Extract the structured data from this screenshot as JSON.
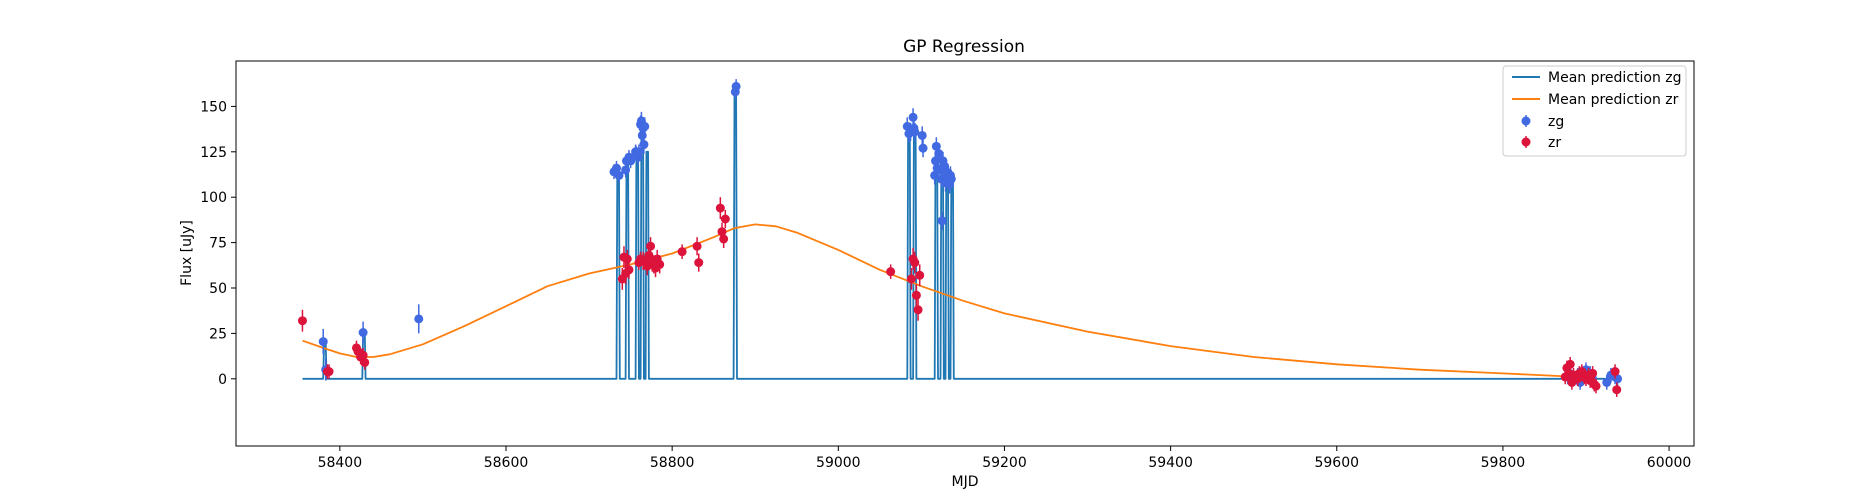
{
  "chart_data": {
    "type": "scatter",
    "title": "GP Regression",
    "xlabel": "MJD",
    "ylabel": "Flux [uJy]",
    "xlim": [
      58275,
      60030
    ],
    "ylim": [
      -37,
      175
    ],
    "xticks": [
      58400,
      58600,
      58800,
      59000,
      59200,
      59400,
      59600,
      59800,
      60000
    ],
    "yticks": [
      0,
      25,
      50,
      75,
      100,
      125,
      150
    ],
    "grid": false,
    "legend_position": "top-right",
    "colors": {
      "zg_line": "#1f77b4",
      "zr_line": "#ff7f0e",
      "zg_points": "#4169e1",
      "zr_points": "#dc143c"
    },
    "lines": [
      {
        "name": "Mean prediction zg",
        "x": [
          58355,
          58380,
          58381,
          58382,
          58383,
          58384,
          58427,
          58428,
          58429,
          58430,
          58431,
          58733,
          58734,
          58735,
          58736,
          58737,
          58744,
          58745,
          58746,
          58747,
          58748,
          58756,
          58757,
          58758,
          58759,
          58760,
          58762,
          58763,
          58764,
          58765,
          58766,
          58768,
          58769,
          58770,
          58771,
          58772,
          58874,
          58875,
          58876,
          58877,
          58878,
          59083,
          59084,
          59085,
          59086,
          59087,
          59090,
          59091,
          59092,
          59093,
          59094,
          59116,
          59117,
          59118,
          59119,
          59120,
          59123,
          59124,
          59125,
          59126,
          59127,
          59129,
          59130,
          59131,
          59132,
          59133,
          59135,
          59136,
          59137,
          59138,
          59139,
          59935
        ],
        "y": [
          0,
          0,
          20,
          20,
          20,
          0,
          0,
          25,
          25,
          25,
          0,
          0,
          115,
          115,
          115,
          0,
          0,
          120,
          120,
          120,
          0,
          0,
          125,
          125,
          125,
          0,
          0,
          140,
          140,
          140,
          0,
          0,
          125,
          125,
          125,
          0,
          0,
          160,
          160,
          160,
          0,
          0,
          137,
          137,
          137,
          0,
          0,
          140,
          140,
          140,
          0,
          0,
          125,
          125,
          125,
          0,
          0,
          120,
          120,
          120,
          0,
          0,
          115,
          115,
          115,
          0,
          0,
          110,
          110,
          110,
          0,
          0
        ]
      },
      {
        "name": "Mean prediction zr",
        "x": [
          58355,
          58380,
          58400,
          58420,
          58440,
          58460,
          58500,
          58550,
          58600,
          58650,
          58700,
          58750,
          58800,
          58850,
          58875,
          58900,
          58925,
          58950,
          59000,
          59050,
          59100,
          59150,
          59200,
          59300,
          59400,
          59500,
          59600,
          59700,
          59800,
          59870
        ],
        "y": [
          21,
          17,
          14,
          12,
          12,
          13.5,
          19,
          29,
          40,
          51,
          58,
          63,
          69,
          78,
          83,
          85,
          84,
          80.5,
          71,
          60,
          51,
          43,
          36,
          26,
          18,
          12,
          8,
          5,
          3,
          1.5
        ]
      }
    ],
    "series": [
      {
        "name": "zg",
        "x": [
          58380,
          58383,
          58428,
          58495,
          58730,
          58733,
          58736,
          58744,
          58745,
          58748,
          58750,
          58756,
          58757,
          58759,
          58760,
          58762,
          58763,
          58764,
          58765,
          58766,
          58767,
          58876,
          58877,
          59083,
          59085,
          59087,
          59090,
          59091,
          59092,
          59101,
          59102,
          59116,
          59117,
          59118,
          59119,
          59121,
          59123,
          59124,
          59125,
          59126,
          59127,
          59128,
          59129,
          59130,
          59132,
          59134,
          59135,
          59136,
          59878,
          59880,
          59882,
          59890,
          59893,
          59895,
          59900,
          59905,
          59908,
          59925,
          59930,
          59935,
          59938
        ],
        "y": [
          20.5,
          5,
          25.5,
          33,
          114,
          116,
          112,
          115,
          120,
          122,
          120,
          125,
          124,
          122,
          125,
          140,
          142,
          134,
          138,
          129,
          139,
          158,
          161,
          139,
          135,
          136,
          144,
          138,
          136,
          134,
          127,
          112,
          120,
          128,
          116,
          124,
          115,
          110,
          87,
          120,
          113,
          117,
          108,
          114,
          110,
          107,
          112,
          110,
          1,
          3,
          0,
          2,
          -2,
          1,
          5,
          3,
          0,
          -2,
          2,
          1,
          0
        ],
        "yerr": [
          7,
          6,
          6,
          8,
          4,
          4,
          4,
          4,
          4,
          4,
          4,
          4,
          4,
          4,
          4,
          5,
          5,
          5,
          5,
          5,
          5,
          4,
          4,
          5,
          5,
          5,
          5,
          5,
          5,
          5,
          5,
          5,
          5,
          5,
          5,
          5,
          5,
          5,
          5,
          5,
          5,
          5,
          5,
          5,
          5,
          5,
          5,
          5,
          4,
          4,
          4,
          4,
          4,
          4,
          4,
          4,
          4,
          4,
          4,
          4,
          4
        ]
      },
      {
        "name": "zr",
        "x": [
          58355,
          58385,
          58387,
          58420,
          58422,
          58425,
          58428,
          58430,
          58740,
          58742,
          58744,
          58746,
          58748,
          58760,
          58762,
          58765,
          58770,
          58772,
          58774,
          58776,
          58778,
          58780,
          58782,
          58785,
          58812,
          58830,
          58832,
          58858,
          58860,
          58862,
          58864,
          59063,
          59088,
          59090,
          59092,
          59094,
          59096,
          59098,
          59875,
          59877,
          59879,
          59881,
          59883,
          59885,
          59890,
          59892,
          59895,
          59898,
          59900,
          59903,
          59905,
          59908,
          59910,
          59912,
          59935,
          59937
        ],
        "y": [
          32,
          4,
          4,
          17,
          15,
          12,
          13,
          9,
          55,
          67,
          58,
          66,
          60,
          64,
          66,
          65,
          62,
          68,
          73,
          64,
          63,
          61,
          66,
          63,
          70,
          73,
          64,
          94,
          81,
          77,
          88,
          59,
          55,
          66,
          64,
          46,
          38,
          57,
          1,
          6,
          3,
          8,
          -2,
          2,
          0,
          3,
          4,
          1,
          0,
          2,
          -1,
          3,
          -3,
          -4,
          4,
          -6
        ],
        "yerr": [
          6,
          4,
          4,
          4,
          4,
          4,
          4,
          4,
          6,
          6,
          6,
          5,
          5,
          4,
          4,
          5,
          5,
          5,
          5,
          5,
          5,
          5,
          5,
          5,
          4,
          5,
          5,
          6,
          5,
          5,
          5,
          4,
          6,
          6,
          6,
          6,
          6,
          6,
          4,
          4,
          4,
          4,
          4,
          4,
          4,
          4,
          4,
          4,
          4,
          4,
          4,
          4,
          4,
          4,
          4,
          4
        ]
      }
    ]
  }
}
